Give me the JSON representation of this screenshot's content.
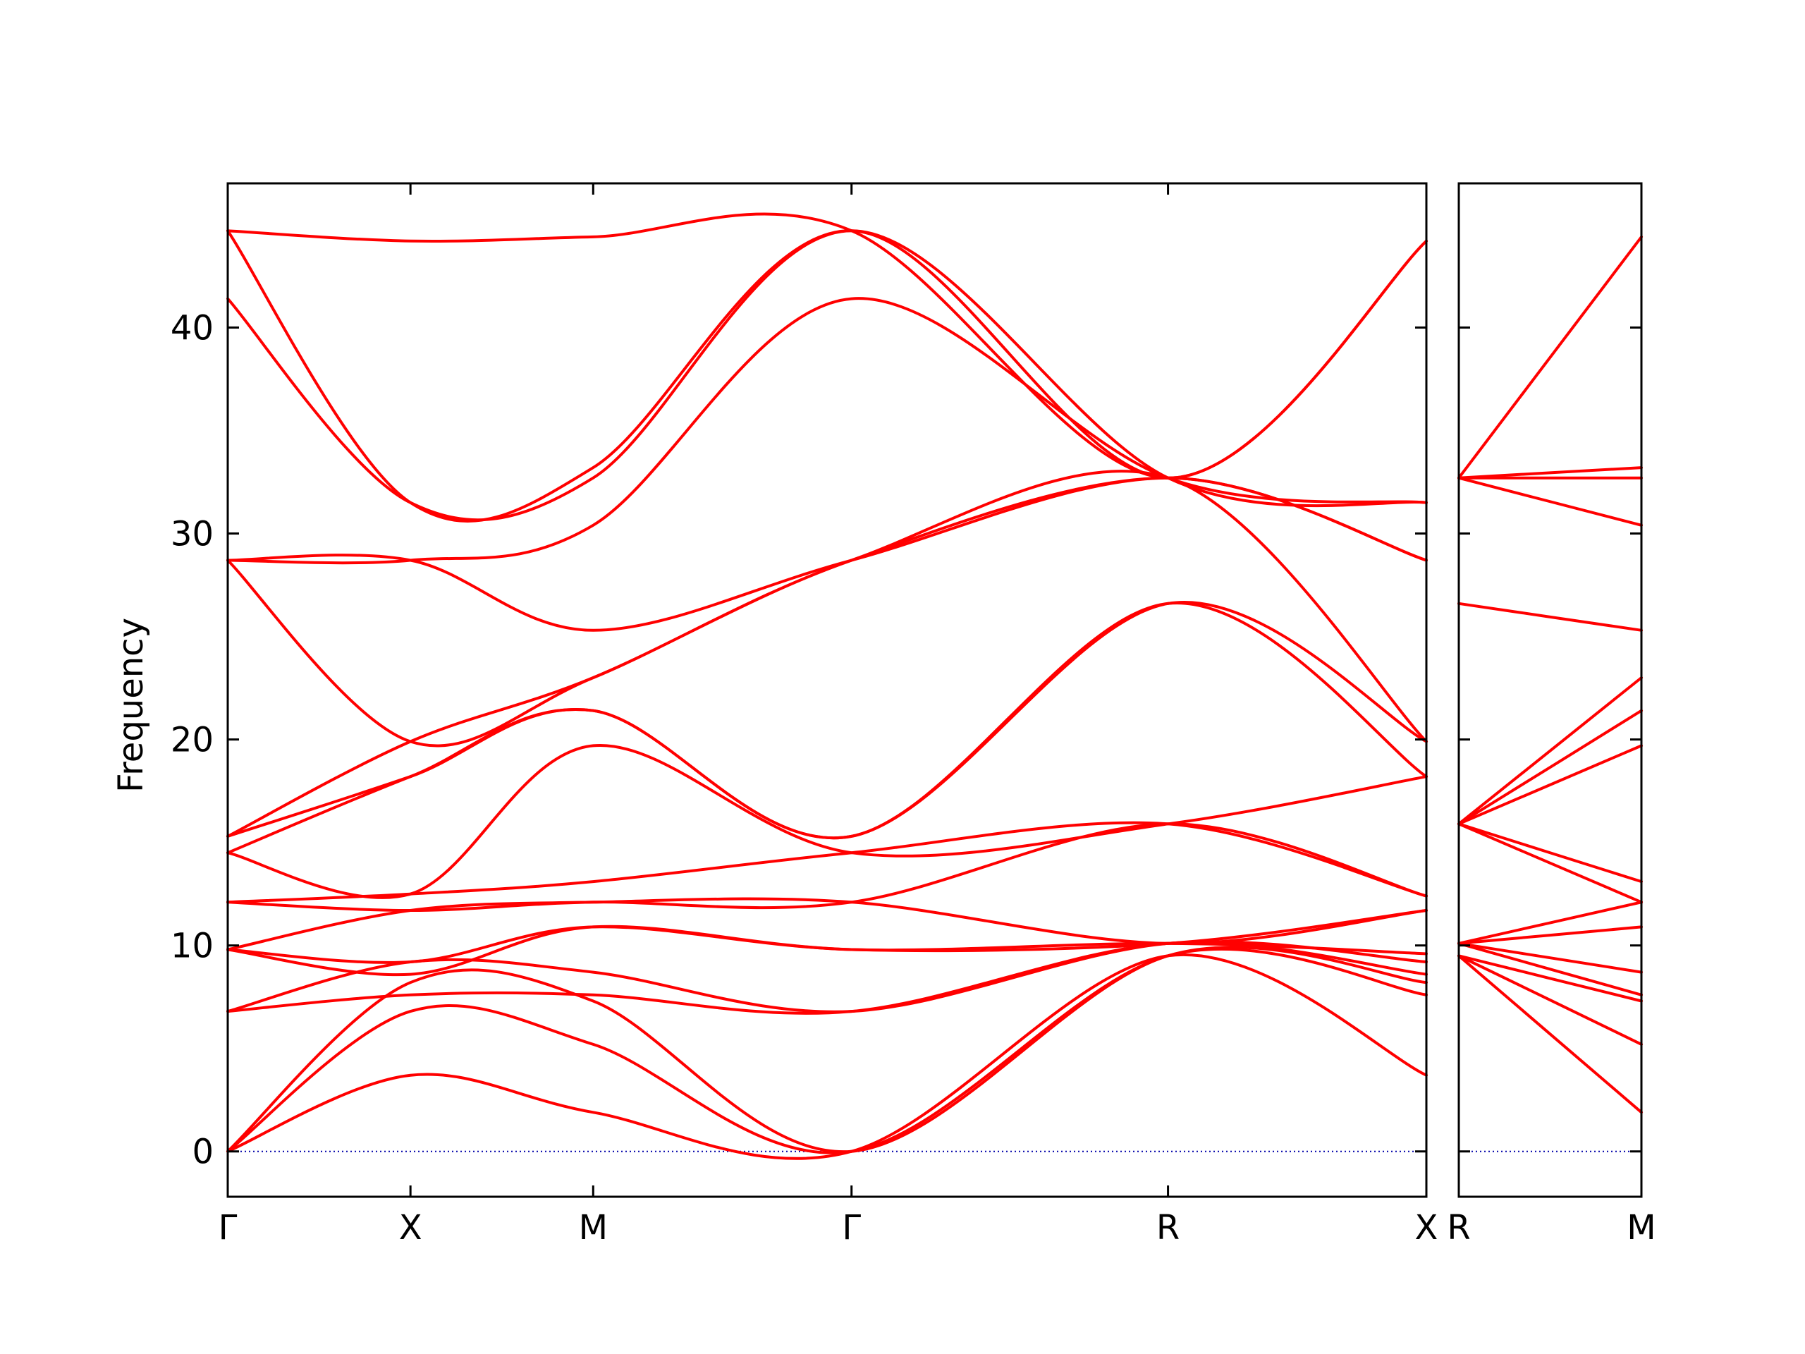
{
  "chart_data": {
    "type": "line",
    "ylabel": "Frequency",
    "ylim": [
      -2.2,
      47.0
    ],
    "y_ticks": [
      "0",
      "10",
      "20",
      "30",
      "40"
    ],
    "y_tick_values": [
      0,
      10,
      20,
      30,
      40
    ],
    "zero_line": true,
    "grid": false,
    "colors": {
      "bands": "#ff0000",
      "zero_line": "#0000aa",
      "axes": "#000000"
    },
    "panels": [
      {
        "id": "main",
        "x_tick_labels": [
          "Γ",
          "X",
          "M",
          "Γ",
          "R",
          "X"
        ],
        "x_tick_positions": [
          0,
          0.5,
          1.0,
          1.707,
          2.573,
          3.28
        ],
        "xlim": [
          0,
          3.28
        ],
        "series": [
          {
            "x": [
              0,
              0.5,
              1.0,
              1.707,
              2.573,
              3.28
            ],
            "y": [
              0,
              3.7,
              1.9,
              0,
              9.5,
              3.7
            ]
          },
          {
            "x": [
              0,
              0.5,
              1.0,
              1.707,
              2.573,
              3.28
            ],
            "y": [
              0,
              6.8,
              5.2,
              0,
              9.5,
              7.6
            ]
          },
          {
            "x": [
              0,
              0.5,
              1.0,
              1.707,
              2.573,
              3.28
            ],
            "y": [
              0,
              8.2,
              7.3,
              0,
              9.5,
              8.2
            ]
          },
          {
            "x": [
              0,
              0.5,
              1.0,
              1.707,
              2.573,
              3.28
            ],
            "y": [
              6.8,
              7.6,
              7.6,
              6.8,
              10.1,
              8.6
            ]
          },
          {
            "x": [
              0,
              0.5,
              1.0,
              1.707,
              2.573,
              3.28
            ],
            "y": [
              6.8,
              9.2,
              8.7,
              6.8,
              10.1,
              9.2
            ]
          },
          {
            "x": [
              0,
              0.5,
              1.0,
              1.707,
              2.573,
              3.28
            ],
            "y": [
              9.8,
              9.2,
              10.9,
              9.8,
              10.1,
              9.6
            ]
          },
          {
            "x": [
              0,
              0.5,
              1.0,
              1.707,
              2.573,
              3.28
            ],
            "y": [
              9.8,
              8.6,
              10.9,
              9.8,
              10.1,
              11.7
            ]
          },
          {
            "x": [
              0,
              0.5,
              1.0,
              1.707,
              2.573,
              3.28
            ],
            "y": [
              9.8,
              11.7,
              12.1,
              12.1,
              10.1,
              11.7
            ]
          },
          {
            "x": [
              0,
              0.5,
              1.0,
              1.707,
              2.573,
              3.28
            ],
            "y": [
              12.1,
              11.7,
              12.1,
              12.1,
              15.9,
              12.4
            ]
          },
          {
            "x": [
              0,
              0.5,
              1.0,
              1.707,
              2.573,
              3.28
            ],
            "y": [
              12.1,
              12.5,
              13.1,
              14.5,
              15.9,
              12.4
            ]
          },
          {
            "x": [
              0,
              0.5,
              1.0,
              1.707,
              2.573,
              3.28
            ],
            "y": [
              14.5,
              12.5,
              19.7,
              14.5,
              15.9,
              18.2
            ]
          },
          {
            "x": [
              0,
              0.5,
              1.0,
              1.707,
              2.573,
              3.28
            ],
            "y": [
              14.5,
              18.2,
              21.4,
              15.3,
              26.6,
              18.2
            ]
          },
          {
            "x": [
              0,
              0.5,
              1.0,
              1.707,
              2.573,
              3.28
            ],
            "y": [
              15.3,
              18.2,
              21.4,
              15.3,
              26.6,
              19.9
            ]
          },
          {
            "x": [
              0,
              0.5,
              1.0,
              1.707,
              2.573,
              3.28
            ],
            "y": [
              15.3,
              19.9,
              23.0,
              28.7,
              32.7,
              19.9
            ]
          },
          {
            "x": [
              0,
              0.5,
              1.0,
              1.707,
              2.573,
              3.28
            ],
            "y": [
              28.7,
              19.9,
              23.0,
              28.7,
              32.7,
              28.7
            ]
          },
          {
            "x": [
              0,
              0.5,
              1.0,
              1.707,
              2.573,
              3.28
            ],
            "y": [
              28.7,
              28.7,
              25.3,
              28.7,
              32.7,
              28.7
            ]
          },
          {
            "x": [
              0,
              0.5,
              1.0,
              1.707,
              2.573,
              3.28
            ],
            "y": [
              28.7,
              28.7,
              30.4,
              41.4,
              32.7,
              31.5
            ]
          },
          {
            "x": [
              0,
              0.5,
              1.0,
              1.707,
              2.573,
              3.28
            ],
            "y": [
              41.4,
              31.5,
              32.7,
              44.7,
              32.7,
              31.5
            ]
          },
          {
            "x": [
              0,
              0.5,
              1.0,
              1.707,
              2.573,
              3.28
            ],
            "y": [
              44.7,
              31.5,
              33.2,
              44.7,
              32.7,
              44.2
            ]
          },
          {
            "x": [
              0,
              0.5,
              1.0,
              1.707,
              2.573,
              3.28
            ],
            "y": [
              44.7,
              44.2,
              44.4,
              44.7,
              32.7,
              44.2
            ]
          }
        ]
      },
      {
        "id": "side",
        "x_tick_labels": [
          "R",
          "M"
        ],
        "x_tick_positions": [
          0,
          0.5
        ],
        "xlim": [
          0,
          0.5
        ],
        "series": [
          {
            "x": [
              0,
              0.5
            ],
            "y": [
              9.5,
              1.9
            ]
          },
          {
            "x": [
              0,
              0.5
            ],
            "y": [
              9.5,
              5.2
            ]
          },
          {
            "x": [
              0,
              0.5
            ],
            "y": [
              9.5,
              7.3
            ]
          },
          {
            "x": [
              0,
              0.5
            ],
            "y": [
              10.1,
              7.6
            ]
          },
          {
            "x": [
              0,
              0.5
            ],
            "y": [
              10.1,
              8.7
            ]
          },
          {
            "x": [
              0,
              0.5
            ],
            "y": [
              10.1,
              10.9
            ]
          },
          {
            "x": [
              0,
              0.5
            ],
            "y": [
              10.1,
              12.1
            ]
          },
          {
            "x": [
              0,
              0.5
            ],
            "y": [
              15.9,
              12.1
            ]
          },
          {
            "x": [
              0,
              0.5
            ],
            "y": [
              15.9,
              13.1
            ]
          },
          {
            "x": [
              0,
              0.5
            ],
            "y": [
              15.9,
              19.7
            ]
          },
          {
            "x": [
              0,
              0.5
            ],
            "y": [
              15.9,
              21.4
            ]
          },
          {
            "x": [
              0,
              0.5
            ],
            "y": [
              15.9,
              23.0
            ]
          },
          {
            "x": [
              0,
              0.5
            ],
            "y": [
              26.6,
              25.3
            ]
          },
          {
            "x": [
              0,
              0.5
            ],
            "y": [
              32.7,
              30.4
            ]
          },
          {
            "x": [
              0,
              0.5
            ],
            "y": [
              32.7,
              32.7
            ]
          },
          {
            "x": [
              0,
              0.5
            ],
            "y": [
              32.7,
              33.2
            ]
          },
          {
            "x": [
              0,
              0.5
            ],
            "y": [
              32.7,
              44.4
            ]
          }
        ]
      }
    ]
  }
}
